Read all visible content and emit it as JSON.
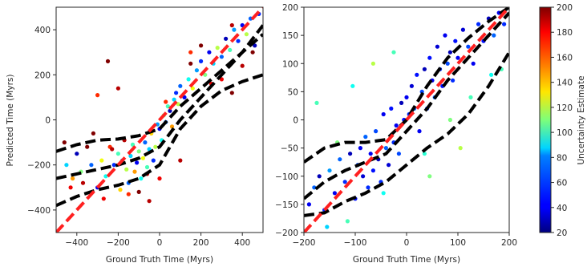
{
  "chart_data": [
    {
      "type": "scatter",
      "xlabel": "Ground Truth Time (Myrs)",
      "ylabel": "Predicted Time (Myrs)",
      "xlim": [
        -500,
        500
      ],
      "ylim": [
        -500,
        500
      ],
      "xticks": [
        -400,
        -200,
        0,
        200,
        400
      ],
      "yticks": [
        -400,
        -200,
        0,
        200,
        400
      ],
      "xtick_labels": [
        "−400",
        "−200",
        "0",
        "200",
        "400"
      ],
      "ytick_labels": [
        "−400",
        "−200",
        "0",
        "200",
        "400"
      ],
      "grid": false,
      "color_range": [
        20,
        200
      ],
      "colormap": "jet",
      "reference_line": {
        "style": "red dashed",
        "x": [
          -500,
          500
        ],
        "y": [
          -500,
          500
        ]
      },
      "bound_lines": [
        {
          "x": [
            -500,
            -400,
            -300,
            -200,
            -100,
            0,
            100,
            200,
            300,
            400,
            500
          ],
          "y": [
            -140,
            -110,
            -90,
            -85,
            -70,
            -40,
            60,
            140,
            220,
            300,
            380
          ]
        },
        {
          "x": [
            -500,
            -400,
            -300,
            -200,
            -100,
            0,
            100,
            200,
            300,
            400,
            500
          ],
          "y": [
            -380,
            -340,
            -310,
            -290,
            -260,
            -200,
            -40,
            60,
            130,
            170,
            200
          ]
        },
        {
          "x": [
            -500,
            -400,
            -300,
            -200,
            -100,
            0,
            100,
            200,
            300,
            400,
            500
          ],
          "y": [
            -260,
            -240,
            -220,
            -200,
            -170,
            -120,
            0,
            100,
            200,
            300,
            420
          ]
        }
      ],
      "points": {
        "x": [
          -450,
          -420,
          -400,
          -380,
          -350,
          -330,
          -300,
          -280,
          -260,
          -240,
          -220,
          -200,
          -190,
          -180,
          -170,
          -160,
          -150,
          -140,
          -130,
          -120,
          -110,
          -100,
          -90,
          -80,
          -70,
          -60,
          -50,
          -40,
          -30,
          -20,
          -10,
          0,
          10,
          20,
          30,
          40,
          50,
          60,
          70,
          80,
          90,
          100,
          120,
          140,
          160,
          180,
          200,
          220,
          240,
          260,
          280,
          300,
          320,
          340,
          360,
          380,
          400,
          420,
          440,
          460,
          480,
          -460,
          -430,
          -370,
          -320,
          -270,
          -230,
          -150,
          -60,
          30,
          150,
          250,
          350,
          450,
          -300,
          -200,
          -100,
          0,
          100,
          200,
          300,
          400,
          -250,
          -50,
          150,
          350
        ],
        "y": [
          -200,
          -260,
          -150,
          -230,
          -120,
          -200,
          -300,
          -180,
          -250,
          -120,
          -200,
          -150,
          -310,
          -180,
          -90,
          -220,
          -280,
          -160,
          -110,
          -230,
          -190,
          -140,
          -260,
          -170,
          -100,
          -210,
          -130,
          -60,
          -180,
          -120,
          -20,
          -40,
          -90,
          20,
          -10,
          60,
          40,
          -30,
          90,
          120,
          70,
          150,
          100,
          180,
          140,
          220,
          260,
          200,
          300,
          250,
          320,
          280,
          360,
          310,
          400,
          350,
          420,
          380,
          450,
          330,
          470,
          -100,
          -300,
          -280,
          -60,
          -350,
          -130,
          -330,
          -240,
          80,
          250,
          160,
          420,
          300,
          110,
          140,
          -320,
          -260,
          -180,
          330,
          180,
          240,
          260,
          -360,
          300,
          120
        ],
        "c": [
          80,
          150,
          30,
          110,
          200,
          60,
          40,
          130,
          90,
          170,
          50,
          100,
          140,
          70,
          190,
          120,
          60,
          80,
          100,
          150,
          40,
          110,
          90,
          130,
          60,
          100,
          80,
          140,
          50,
          120,
          70,
          40,
          90,
          110,
          60,
          100,
          30,
          150,
          80,
          50,
          120,
          60,
          40,
          90,
          130,
          70,
          50,
          110,
          40,
          80,
          120,
          60,
          30,
          100,
          70,
          50,
          40,
          120,
          60,
          30,
          50,
          200,
          180,
          190,
          200,
          180,
          190,
          170,
          190,
          170,
          200,
          180,
          190,
          200,
          170,
          190,
          200,
          180,
          190,
          200,
          180,
          190,
          200,
          190,
          170,
          200
        ]
      }
    },
    {
      "type": "scatter",
      "xlabel": "Ground Truth Time (Myrs)",
      "ylabel": "",
      "xlim": [
        -200,
        200
      ],
      "ylim": [
        -200,
        200
      ],
      "xticks": [
        -200,
        -100,
        0,
        100,
        200
      ],
      "yticks": [
        -200,
        -150,
        -100,
        -50,
        0,
        50,
        100,
        150,
        200
      ],
      "xtick_labels": [
        "−200",
        "−100",
        "0",
        "100",
        "200"
      ],
      "ytick_labels": [
        "−200",
        "−150",
        "−100",
        "−50",
        "0",
        "50",
        "100",
        "150",
        "200"
      ],
      "grid": false,
      "color_range": [
        20,
        200
      ],
      "colormap": "jet",
      "reference_line": {
        "style": "red dashed",
        "x": [
          -200,
          200
        ],
        "y": [
          -200,
          200
        ]
      },
      "bound_lines": [
        {
          "x": [
            -200,
            -160,
            -120,
            -80,
            -40,
            0,
            40,
            80,
            120,
            160,
            200
          ],
          "y": [
            -75,
            -50,
            -40,
            -40,
            -35,
            0,
            60,
            110,
            145,
            175,
            200
          ]
        },
        {
          "x": [
            -200,
            -160,
            -120,
            -80,
            -40,
            0,
            40,
            80,
            120,
            160,
            200
          ],
          "y": [
            -170,
            -165,
            -145,
            -130,
            -110,
            -80,
            -50,
            -25,
            10,
            60,
            120
          ]
        },
        {
          "x": [
            -200,
            -160,
            -120,
            -80,
            -40,
            0,
            40,
            80,
            120,
            160,
            200
          ],
          "y": [
            -140,
            -110,
            -90,
            -75,
            -60,
            -20,
            20,
            70,
            110,
            150,
            190
          ]
        }
      ],
      "points": {
        "x": [
          -190,
          -180,
          -170,
          -160,
          -150,
          -140,
          -130,
          -120,
          -110,
          -100,
          -95,
          -90,
          -85,
          -80,
          -75,
          -70,
          -65,
          -60,
          -55,
          -50,
          -45,
          -40,
          -35,
          -30,
          -25,
          -20,
          -15,
          -10,
          -5,
          0,
          5,
          10,
          15,
          20,
          25,
          30,
          35,
          40,
          45,
          50,
          55,
          60,
          65,
          70,
          75,
          80,
          85,
          90,
          95,
          100,
          110,
          120,
          130,
          140,
          150,
          160,
          170,
          180,
          190,
          -175,
          -135,
          -105,
          -65,
          -25,
          35,
          85,
          125,
          165,
          -155,
          -115,
          -45,
          45,
          105,
          185
        ],
        "y": [
          -150,
          -120,
          -100,
          -160,
          -90,
          -130,
          -70,
          -110,
          -60,
          -140,
          -80,
          -50,
          -100,
          -30,
          -120,
          -60,
          -90,
          -20,
          -70,
          -110,
          10,
          -50,
          -80,
          20,
          -40,
          -10,
          -60,
          30,
          0,
          40,
          10,
          60,
          20,
          80,
          -20,
          50,
          90,
          20,
          110,
          70,
          40,
          130,
          90,
          60,
          150,
          100,
          120,
          70,
          140,
          110,
          160,
          130,
          100,
          170,
          140,
          180,
          150,
          190,
          170,
          30,
          -40,
          60,
          100,
          120,
          -60,
          0,
          40,
          80,
          -190,
          -180,
          -130,
          -100,
          -50,
          90
        ],
        "c": [
          40,
          60,
          30,
          50,
          70,
          40,
          60,
          50,
          30,
          45,
          55,
          40,
          35,
          60,
          50,
          40,
          45,
          55,
          30,
          50,
          40,
          60,
          35,
          45,
          50,
          40,
          55,
          30,
          45,
          40,
          50,
          35,
          60,
          45,
          40,
          55,
          30,
          50,
          45,
          40,
          60,
          35,
          50,
          45,
          40,
          55,
          30,
          50,
          45,
          40,
          35,
          55,
          40,
          50,
          45,
          30,
          60,
          40,
          50,
          100,
          110,
          90,
          120,
          100,
          95,
          110,
          100,
          90,
          80,
          100,
          90,
          110,
          120,
          100
        ]
      }
    }
  ],
  "colorbar": {
    "label": "Uncertainty Estimate",
    "range": [
      20,
      200
    ],
    "colormap": "jet",
    "ticks": [
      "20",
      "40",
      "60",
      "80",
      "100",
      "120",
      "140",
      "160",
      "180",
      "200"
    ]
  }
}
